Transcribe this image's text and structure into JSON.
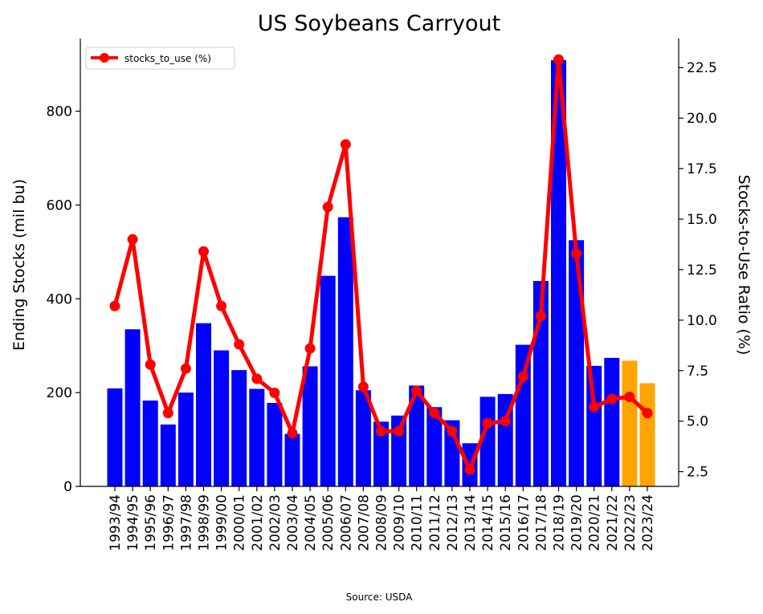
{
  "chart_data": {
    "type": "bar",
    "title": "US Soybeans Carryout",
    "categories": [
      "1993/94",
      "1994/95",
      "1995/96",
      "1996/97",
      "1997/98",
      "1998/99",
      "1999/00",
      "2000/01",
      "2001/02",
      "2002/03",
      "2003/04",
      "2004/05",
      "2005/06",
      "2006/07",
      "2007/08",
      "2008/09",
      "2009/10",
      "2010/11",
      "2011/12",
      "2012/13",
      "2013/14",
      "2014/15",
      "2015/16",
      "2016/17",
      "2017/18",
      "2018/19",
      "2019/20",
      "2020/21",
      "2021/22",
      "2022/23",
      "2023/24"
    ],
    "series": [
      {
        "kind": "bar",
        "axis": "left",
        "values": [
          209,
          335,
          183,
          132,
          200,
          348,
          290,
          248,
          208,
          178,
          112,
          256,
          449,
          574,
          205,
          138,
          151,
          215,
          169,
          141,
          92,
          191,
          197,
          302,
          438,
          909,
          525,
          257,
          274,
          268,
          220
        ],
        "colors": [
          "#0000ff",
          "#0000ff",
          "#0000ff",
          "#0000ff",
          "#0000ff",
          "#0000ff",
          "#0000ff",
          "#0000ff",
          "#0000ff",
          "#0000ff",
          "#0000ff",
          "#0000ff",
          "#0000ff",
          "#0000ff",
          "#0000ff",
          "#0000ff",
          "#0000ff",
          "#0000ff",
          "#0000ff",
          "#0000ff",
          "#0000ff",
          "#0000ff",
          "#0000ff",
          "#0000ff",
          "#0000ff",
          "#0000ff",
          "#0000ff",
          "#0000ff",
          "#0000ff",
          "#ffa500",
          "#ffa500"
        ]
      },
      {
        "kind": "line",
        "axis": "right",
        "name": "stocks_to_use (%)",
        "color": "#ff0000",
        "values": [
          10.7,
          14.0,
          7.8,
          5.4,
          7.6,
          13.4,
          10.7,
          8.8,
          7.1,
          6.4,
          4.4,
          8.6,
          15.6,
          18.7,
          6.7,
          4.5,
          4.5,
          6.5,
          5.4,
          4.5,
          2.6,
          4.9,
          5.0,
          7.2,
          10.2,
          22.9,
          13.3,
          5.7,
          6.1,
          6.2,
          5.4
        ]
      }
    ],
    "ylabel": "Ending Stocks (mil bu)",
    "ylabel_right": "Stocks-to-Use Ratio (%)",
    "ylim": [
      0,
      955
    ],
    "ylim_right": [
      1.77,
      23.94
    ],
    "yticks": [
      "0",
      "200",
      "400",
      "600",
      "800"
    ],
    "yticks_right": [
      "2.5",
      "5.0",
      "7.5",
      "10.0",
      "12.5",
      "15.0",
      "17.5",
      "20.0",
      "22.5"
    ],
    "legend_position": "top-left",
    "grid": false,
    "source_note": "Source: USDA"
  }
}
